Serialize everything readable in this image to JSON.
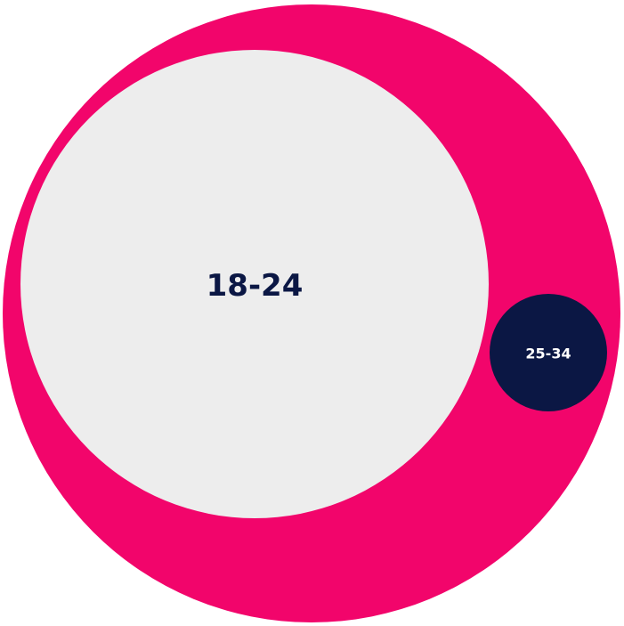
{
  "chart_data": {
    "type": "bubble",
    "title": "",
    "colors": {
      "outer": "#F2056B",
      "primary": "#EDEDED",
      "secondary": "#0B1744",
      "label_dark": "#0B1744",
      "label_light": "#FFFFFF"
    },
    "items": [
      {
        "label": "18-24",
        "share": 0.953
      },
      {
        "label": "25-34",
        "share": 0.047
      }
    ]
  }
}
